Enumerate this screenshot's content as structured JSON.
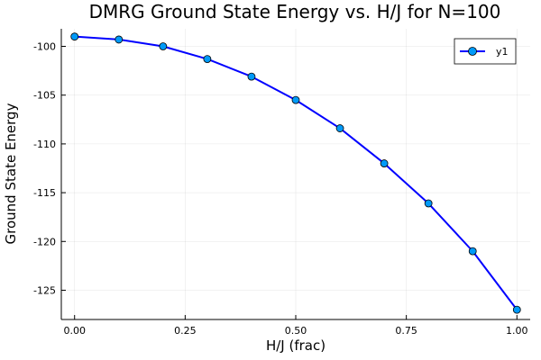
{
  "chart_data": {
    "type": "line",
    "title": "DMRG Ground State Energy vs. H/J for N=100",
    "xlabel": "H/J (frac)",
    "ylabel": "Ground State Energy",
    "xlim": [
      -0.03,
      1.03
    ],
    "ylim": [
      -128.0,
      -98.2
    ],
    "x_ticks": [
      0.0,
      0.25,
      0.5,
      0.75,
      1.0
    ],
    "x_tick_labels": [
      "0.00",
      "0.25",
      "0.50",
      "0.75",
      "1.00"
    ],
    "y_ticks": [
      -125,
      -120,
      -115,
      -110,
      -105,
      -100
    ],
    "y_tick_labels": [
      "-125",
      "-120",
      "-115",
      "-110",
      "-105",
      "-100"
    ],
    "grid": true,
    "legend": "top-right",
    "series": [
      {
        "name": "y1",
        "color": "#0000ff",
        "marker_color": "#009af9",
        "x": [
          0.0,
          0.1,
          0.2,
          0.3,
          0.4,
          0.5,
          0.6,
          0.7,
          0.8,
          0.9,
          1.0
        ],
        "y": [
          -99.0,
          -99.3,
          -100.0,
          -101.3,
          -103.1,
          -105.5,
          -108.4,
          -112.0,
          -116.1,
          -121.0,
          -127.0
        ]
      }
    ]
  }
}
